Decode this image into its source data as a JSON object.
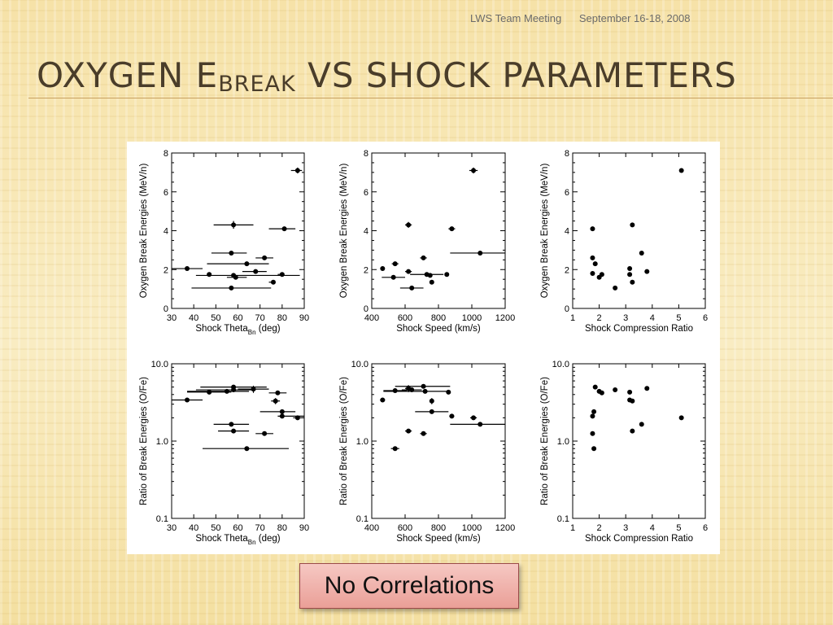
{
  "header": {
    "meeting": "LWS Team Meeting",
    "date": "September 16-18, 2008"
  },
  "title": {
    "prefix": "Oxygen E",
    "sub": "break",
    "suffix": " vs Shock Parameters"
  },
  "button": {
    "label": "No Correlations"
  },
  "colors": {
    "title": "#4a3d2a",
    "rule": "#c8a060",
    "button_top": "#f6c8c3",
    "button_bottom": "#ea9f97"
  },
  "chart_data": [
    {
      "type": "scatter",
      "xlabel": "Shock Theta",
      "xlabel_sub": "Bn",
      "xlabel_unit": " (deg)",
      "ylabel": "Oxygen Break Energies (MeV/n)",
      "xlim": [
        30,
        90
      ],
      "ylim": [
        0,
        8
      ],
      "yscale": "linear",
      "xticks": [
        30,
        40,
        50,
        60,
        70,
        80,
        90
      ],
      "yticks": [
        0,
        2,
        4,
        6,
        8
      ],
      "points": [
        {
          "x": 87,
          "y": 7.1,
          "xerr": [
            3,
            2
          ],
          "yerr": 0.15
        },
        {
          "x": 58,
          "y": 4.3,
          "xerr": [
            9,
            9
          ],
          "yerr": 0.2
        },
        {
          "x": 81,
          "y": 4.1,
          "xerr": [
            7,
            5
          ]
        },
        {
          "x": 57,
          "y": 2.85,
          "xerr": [
            9,
            7
          ]
        },
        {
          "x": 72,
          "y": 2.6,
          "xerr": [
            4,
            4
          ]
        },
        {
          "x": 64,
          "y": 2.3,
          "xerr": [
            18,
            10
          ]
        },
        {
          "x": 37,
          "y": 2.05,
          "xerr": [
            10,
            7
          ]
        },
        {
          "x": 68,
          "y": 1.9,
          "xerr": [
            6,
            5
          ]
        },
        {
          "x": 47,
          "y": 1.75,
          "xerr": [
            1,
            0
          ]
        },
        {
          "x": 58,
          "y": 1.7,
          "xerr": [
            17,
            30
          ]
        },
        {
          "x": 80,
          "y": 1.75,
          "xerr": [
            2,
            1
          ]
        },
        {
          "x": 59,
          "y": 1.6,
          "xerr": [
            4,
            5
          ]
        },
        {
          "x": 76,
          "y": 1.35,
          "xerr": [
            2,
            1
          ]
        },
        {
          "x": 57,
          "y": 1.05,
          "xerr": [
            18,
            18
          ]
        }
      ]
    },
    {
      "type": "scatter",
      "xlabel": "Shock Speed (km/s)",
      "ylabel": "Oxygen Break Energies (MeV/n)",
      "xlim": [
        400,
        1200
      ],
      "ylim": [
        0,
        8
      ],
      "yscale": "linear",
      "xticks": [
        400,
        600,
        800,
        1000,
        1200
      ],
      "yticks": [
        0,
        2,
        4,
        6,
        8
      ],
      "points": [
        {
          "x": 1010,
          "y": 7.1,
          "xerr": [
            25,
            25
          ],
          "yerr": 0.15
        },
        {
          "x": 620,
          "y": 4.3,
          "xerr": [
            20,
            20
          ],
          "yerr": 0.15
        },
        {
          "x": 880,
          "y": 4.1,
          "xerr": [
            20,
            20
          ]
        },
        {
          "x": 1050,
          "y": 2.85,
          "xerr": [
            180,
            320
          ]
        },
        {
          "x": 710,
          "y": 2.6,
          "xerr": [
            20,
            20
          ]
        },
        {
          "x": 540,
          "y": 2.3,
          "xerr": [
            20,
            20
          ]
        },
        {
          "x": 465,
          "y": 2.05,
          "xerr": [
            0,
            0
          ]
        },
        {
          "x": 620,
          "y": 1.9,
          "xerr": [
            20,
            20
          ]
        },
        {
          "x": 730,
          "y": 1.75,
          "xerr": [
            100,
            100
          ]
        },
        {
          "x": 850,
          "y": 1.75,
          "xerr": [
            10,
            10
          ]
        },
        {
          "x": 750,
          "y": 1.7,
          "xerr": [
            10,
            10
          ]
        },
        {
          "x": 530,
          "y": 1.6,
          "xerr": [
            70,
            70
          ]
        },
        {
          "x": 760,
          "y": 1.35,
          "xerr": [
            10,
            10
          ]
        },
        {
          "x": 640,
          "y": 1.05,
          "xerr": [
            70,
            70
          ]
        }
      ]
    },
    {
      "type": "scatter",
      "xlabel": "Shock Compression Ratio",
      "ylabel": "Oxygen Break Energies (MeV/n)",
      "xlim": [
        1,
        6
      ],
      "ylim": [
        0,
        8
      ],
      "yscale": "linear",
      "xticks": [
        1,
        2,
        3,
        4,
        5,
        6
      ],
      "yticks": [
        0,
        2,
        4,
        6,
        8
      ],
      "points": [
        {
          "x": 5.1,
          "y": 7.1
        },
        {
          "x": 3.25,
          "y": 4.3
        },
        {
          "x": 1.75,
          "y": 4.1
        },
        {
          "x": 3.6,
          "y": 2.85
        },
        {
          "x": 1.75,
          "y": 2.6
        },
        {
          "x": 1.85,
          "y": 2.3
        },
        {
          "x": 3.15,
          "y": 2.05
        },
        {
          "x": 3.8,
          "y": 1.9
        },
        {
          "x": 1.75,
          "y": 1.8
        },
        {
          "x": 3.15,
          "y": 1.75
        },
        {
          "x": 2.1,
          "y": 1.75
        },
        {
          "x": 2.0,
          "y": 1.6
        },
        {
          "x": 3.25,
          "y": 1.35
        },
        {
          "x": 2.6,
          "y": 1.05
        }
      ]
    },
    {
      "type": "scatter",
      "xlabel": "Shock Theta",
      "xlabel_sub": "Bn",
      "xlabel_unit": " (deg)",
      "ylabel": "Ratio of Break Energies (O/Fe)",
      "xlim": [
        30,
        90
      ],
      "ylim": [
        0.1,
        10
      ],
      "yscale": "log",
      "xticks": [
        30,
        40,
        50,
        60,
        70,
        80,
        90
      ],
      "yticks": [
        0.1,
        1,
        10
      ],
      "ytick_labels": [
        "0.1",
        "1.0",
        "10.0"
      ],
      "points": [
        {
          "x": 58,
          "y": 5.0,
          "xerr": [
            15,
            15
          ]
        },
        {
          "x": 67,
          "y": 4.7,
          "xerr": [
            7,
            7
          ],
          "yerr": 0.5
        },
        {
          "x": 58,
          "y": 4.6,
          "xerr": [
            17,
            10
          ]
        },
        {
          "x": 55,
          "y": 4.4,
          "xerr": [
            18,
            10
          ]
        },
        {
          "x": 47,
          "y": 4.3,
          "xerr": [
            10,
            10
          ]
        },
        {
          "x": 78,
          "y": 4.2,
          "xerr": [
            4,
            4
          ]
        },
        {
          "x": 37,
          "y": 3.4,
          "xerr": [
            7,
            7
          ]
        },
        {
          "x": 77,
          "y": 3.3,
          "xerr": [
            2,
            2
          ],
          "yerr": 0.3
        },
        {
          "x": 80,
          "y": 2.4,
          "xerr": [
            10,
            6
          ]
        },
        {
          "x": 80,
          "y": 2.1,
          "xerr": [
            2,
            10
          ]
        },
        {
          "x": 87,
          "y": 2.0,
          "xerr": [
            2,
            3
          ]
        },
        {
          "x": 57,
          "y": 1.65,
          "xerr": [
            8,
            8
          ]
        },
        {
          "x": 58,
          "y": 1.35,
          "xerr": [
            7,
            7
          ]
        },
        {
          "x": 72,
          "y": 1.25,
          "xerr": [
            4,
            4
          ]
        },
        {
          "x": 64,
          "y": 0.8,
          "xerr": [
            20,
            19
          ]
        }
      ]
    },
    {
      "type": "scatter",
      "xlabel": "Shock Speed (km/s)",
      "ylabel": "Ratio of Break Energies (O/Fe)",
      "xlim": [
        400,
        1200
      ],
      "ylim": [
        0.1,
        10
      ],
      "yscale": "log",
      "xticks": [
        400,
        600,
        800,
        1000,
        1200
      ],
      "yticks": [
        0.1,
        1,
        10
      ],
      "ytick_labels": [
        "0.1",
        "1.0",
        "10.0"
      ],
      "points": [
        {
          "x": 710,
          "y": 5.1,
          "xerr": [
            170,
            160
          ]
        },
        {
          "x": 620,
          "y": 4.8,
          "xerr": [
            20,
            20
          ],
          "yerr": 0.5
        },
        {
          "x": 640,
          "y": 4.6,
          "xerr": [
            60,
            60
          ]
        },
        {
          "x": 540,
          "y": 4.5,
          "xerr": [
            70,
            70
          ]
        },
        {
          "x": 720,
          "y": 4.4,
          "xerr": [
            250,
            130
          ]
        },
        {
          "x": 860,
          "y": 4.3,
          "xerr": [
            10,
            10
          ]
        },
        {
          "x": 465,
          "y": 3.4,
          "xerr": [
            15,
            15
          ]
        },
        {
          "x": 760,
          "y": 3.3,
          "xerr": [
            10,
            10
          ],
          "yerr": 0.3
        },
        {
          "x": 760,
          "y": 2.4,
          "xerr": [
            100,
            100
          ]
        },
        {
          "x": 1010,
          "y": 2.0,
          "xerr": [
            20,
            20
          ]
        },
        {
          "x": 880,
          "y": 2.1,
          "xerr": [
            15,
            15
          ]
        },
        {
          "x": 1050,
          "y": 1.65,
          "xerr": [
            180,
            330
          ]
        },
        {
          "x": 620,
          "y": 1.35,
          "xerr": [
            20,
            20
          ]
        },
        {
          "x": 710,
          "y": 1.25,
          "xerr": [
            20,
            20
          ]
        },
        {
          "x": 540,
          "y": 0.8,
          "xerr": [
            25,
            25
          ]
        }
      ]
    },
    {
      "type": "scatter",
      "xlabel": "Shock Compression Ratio",
      "ylabel": "Ratio of Break Energies (O/Fe)",
      "xlim": [
        1,
        6
      ],
      "ylim": [
        0.1,
        10
      ],
      "yscale": "log",
      "xticks": [
        1,
        2,
        3,
        4,
        5,
        6
      ],
      "yticks": [
        0.1,
        1,
        10
      ],
      "ytick_labels": [
        "0.1",
        "1.0",
        "10.0"
      ],
      "points": [
        {
          "x": 1.85,
          "y": 5.0
        },
        {
          "x": 3.8,
          "y": 4.8
        },
        {
          "x": 2.6,
          "y": 4.6
        },
        {
          "x": 2.0,
          "y": 4.4
        },
        {
          "x": 2.1,
          "y": 4.2
        },
        {
          "x": 3.15,
          "y": 4.3
        },
        {
          "x": 3.15,
          "y": 3.4
        },
        {
          "x": 3.25,
          "y": 3.3
        },
        {
          "x": 1.8,
          "y": 2.4
        },
        {
          "x": 1.75,
          "y": 2.1
        },
        {
          "x": 5.1,
          "y": 2.0
        },
        {
          "x": 3.6,
          "y": 1.65
        },
        {
          "x": 3.25,
          "y": 1.35
        },
        {
          "x": 1.75,
          "y": 1.25
        },
        {
          "x": 1.8,
          "y": 0.8
        }
      ]
    }
  ]
}
